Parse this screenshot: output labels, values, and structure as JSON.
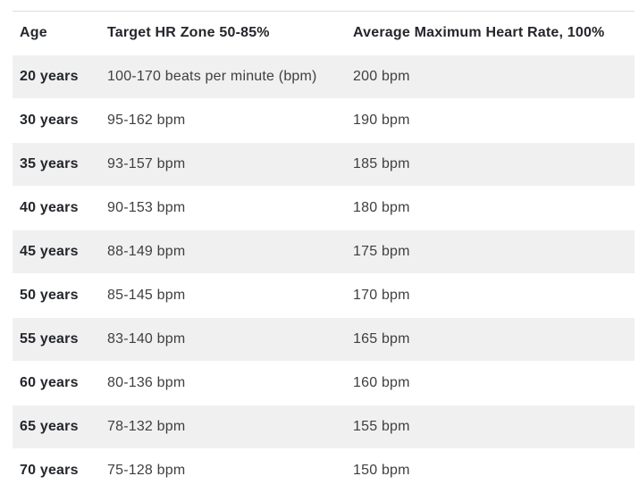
{
  "chart_data": {
    "type": "table",
    "columns": [
      "Age",
      "Target HR Zone 50-85%",
      "Average Maximum Heart Rate, 100%"
    ],
    "rows": [
      [
        "20 years",
        "100-170 beats per minute (bpm)",
        "200 bpm"
      ],
      [
        "30 years",
        "95-162 bpm",
        "190 bpm"
      ],
      [
        "35 years",
        "93-157 bpm",
        "185 bpm"
      ],
      [
        "40 years",
        "90-153 bpm",
        "180 bpm"
      ],
      [
        "45 years",
        "88-149 bpm",
        "175 bpm"
      ],
      [
        "50 years",
        "85-145 bpm",
        "170 bpm"
      ],
      [
        "55 years",
        "83-140 bpm",
        "165 bpm"
      ],
      [
        "60 years",
        "80-136 bpm",
        "160 bpm"
      ],
      [
        "65 years",
        "78-132 bpm",
        "155 bpm"
      ],
      [
        "70 years",
        "75-128 bpm",
        "150 bpm"
      ]
    ]
  },
  "colors": {
    "stripe": "#f0f0f0",
    "top_border": "#dcdcdc",
    "heading_text": "#23262b",
    "body_text": "#3f3f41",
    "page_bg": "#ffffff"
  }
}
